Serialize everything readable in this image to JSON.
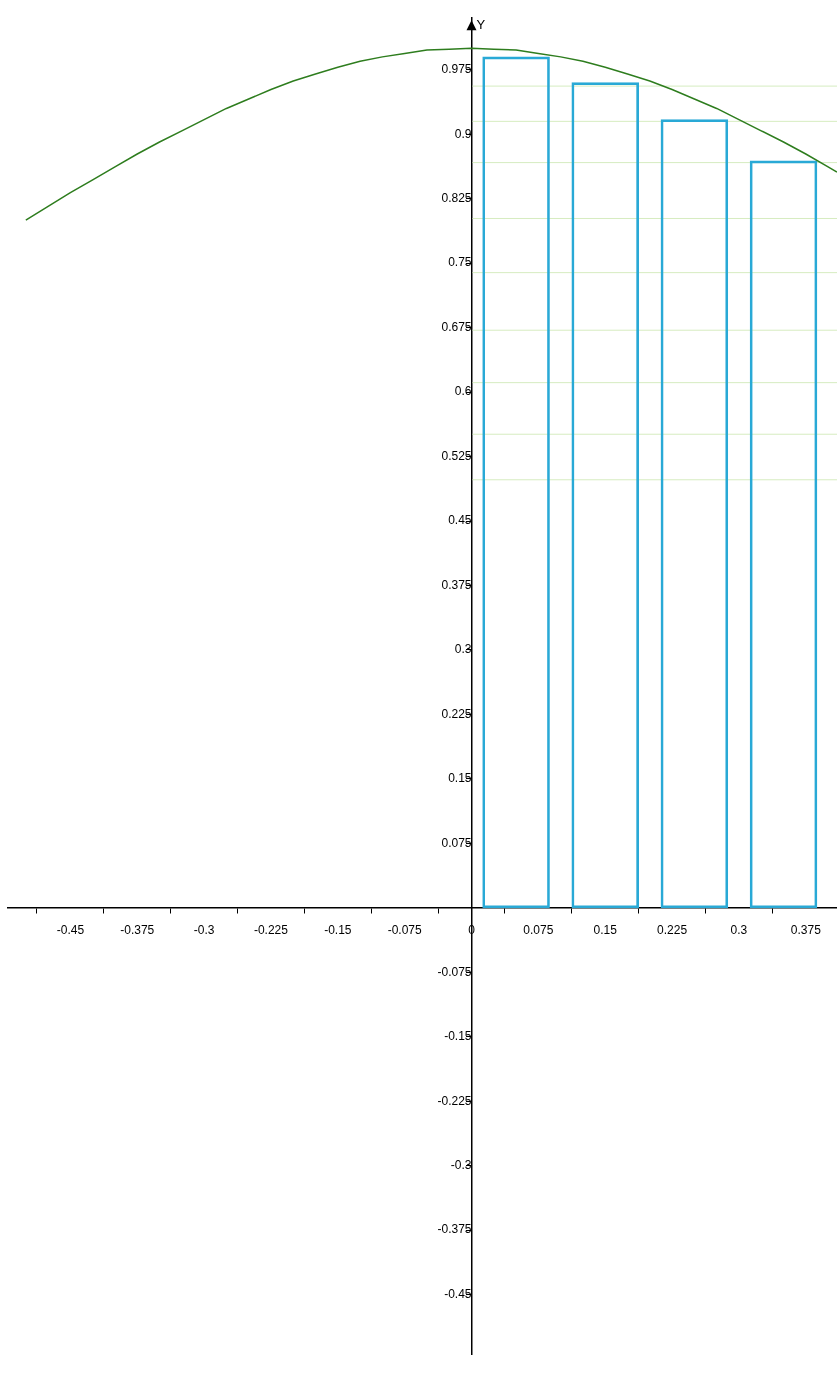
{
  "chart_data": {
    "type": "line",
    "ylabel": "Y",
    "xlim": [
      -0.52,
      0.41
    ],
    "ylim": [
      -0.52,
      1.035
    ],
    "xticks": [
      -0.45,
      -0.375,
      -0.3,
      -0.225,
      -0.15,
      -0.075,
      0,
      0.075,
      0.15,
      0.225,
      0.3,
      0.375
    ],
    "yticks": [
      -0.45,
      -0.375,
      -0.3,
      -0.225,
      -0.15,
      -0.075,
      0.075,
      0.15,
      0.225,
      0.3,
      0.375,
      0.45,
      0.525,
      0.6,
      0.675,
      0.75,
      0.825,
      0.9,
      0.975
    ],
    "grid": false,
    "legend": false,
    "series": [
      {
        "color": "#2e7d1e",
        "x": [
          -0.5,
          -0.475,
          -0.45,
          -0.425,
          -0.4,
          -0.375,
          -0.35,
          -0.325,
          -0.3,
          -0.275,
          -0.25,
          -0.225,
          -0.2,
          -0.175,
          -0.15,
          -0.125,
          -0.1,
          -0.075,
          -0.05,
          -0.025,
          0,
          0.025,
          0.05,
          0.075,
          0.1,
          0.125,
          0.15,
          0.175,
          0.2,
          0.225,
          0.25,
          0.275,
          0.3,
          0.325,
          0.35,
          0.375,
          0.4,
          0.41
        ],
        "values": [
          0.8,
          0.816,
          0.832,
          0.847,
          0.862,
          0.877,
          0.891,
          0.904,
          0.917,
          0.93,
          0.941,
          0.952,
          0.962,
          0.97,
          0.978,
          0.985,
          0.99,
          0.994,
          0.998,
          0.999,
          1,
          0.999,
          0.998,
          0.994,
          0.99,
          0.985,
          0.978,
          0.97,
          0.962,
          0.952,
          0.941,
          0.93,
          0.917,
          0.904,
          0.891,
          0.877,
          0.862,
          0.856
        ]
      },
      {
        "type": "bar",
        "color": "#29a9d6",
        "x": [
          0.05,
          0.15,
          0.25,
          0.35
        ],
        "values": [
          0.99,
          0.96,
          0.917,
          0.869
        ]
      }
    ],
    "ref_lines": [
      {
        "axis": "y",
        "value": 0.956,
        "color": "#d6ecc0"
      },
      {
        "axis": "y",
        "value": 0.915,
        "color": "#d6ecc0"
      },
      {
        "axis": "y",
        "value": 0.867,
        "color": "#d6ecc0"
      },
      {
        "axis": "y",
        "value": 0.802,
        "color": "#d6ecc0"
      },
      {
        "axis": "y",
        "value": 0.739,
        "color": "#d6ecc0"
      },
      {
        "axis": "y",
        "value": 0.672,
        "color": "#d6ecc0"
      },
      {
        "axis": "y",
        "value": 0.611,
        "color": "#d6ecc0"
      },
      {
        "axis": "y",
        "value": 0.551,
        "color": "#d6ecc0"
      },
      {
        "axis": "y",
        "value": 0.498,
        "color": "#d6ecc0"
      }
    ]
  }
}
